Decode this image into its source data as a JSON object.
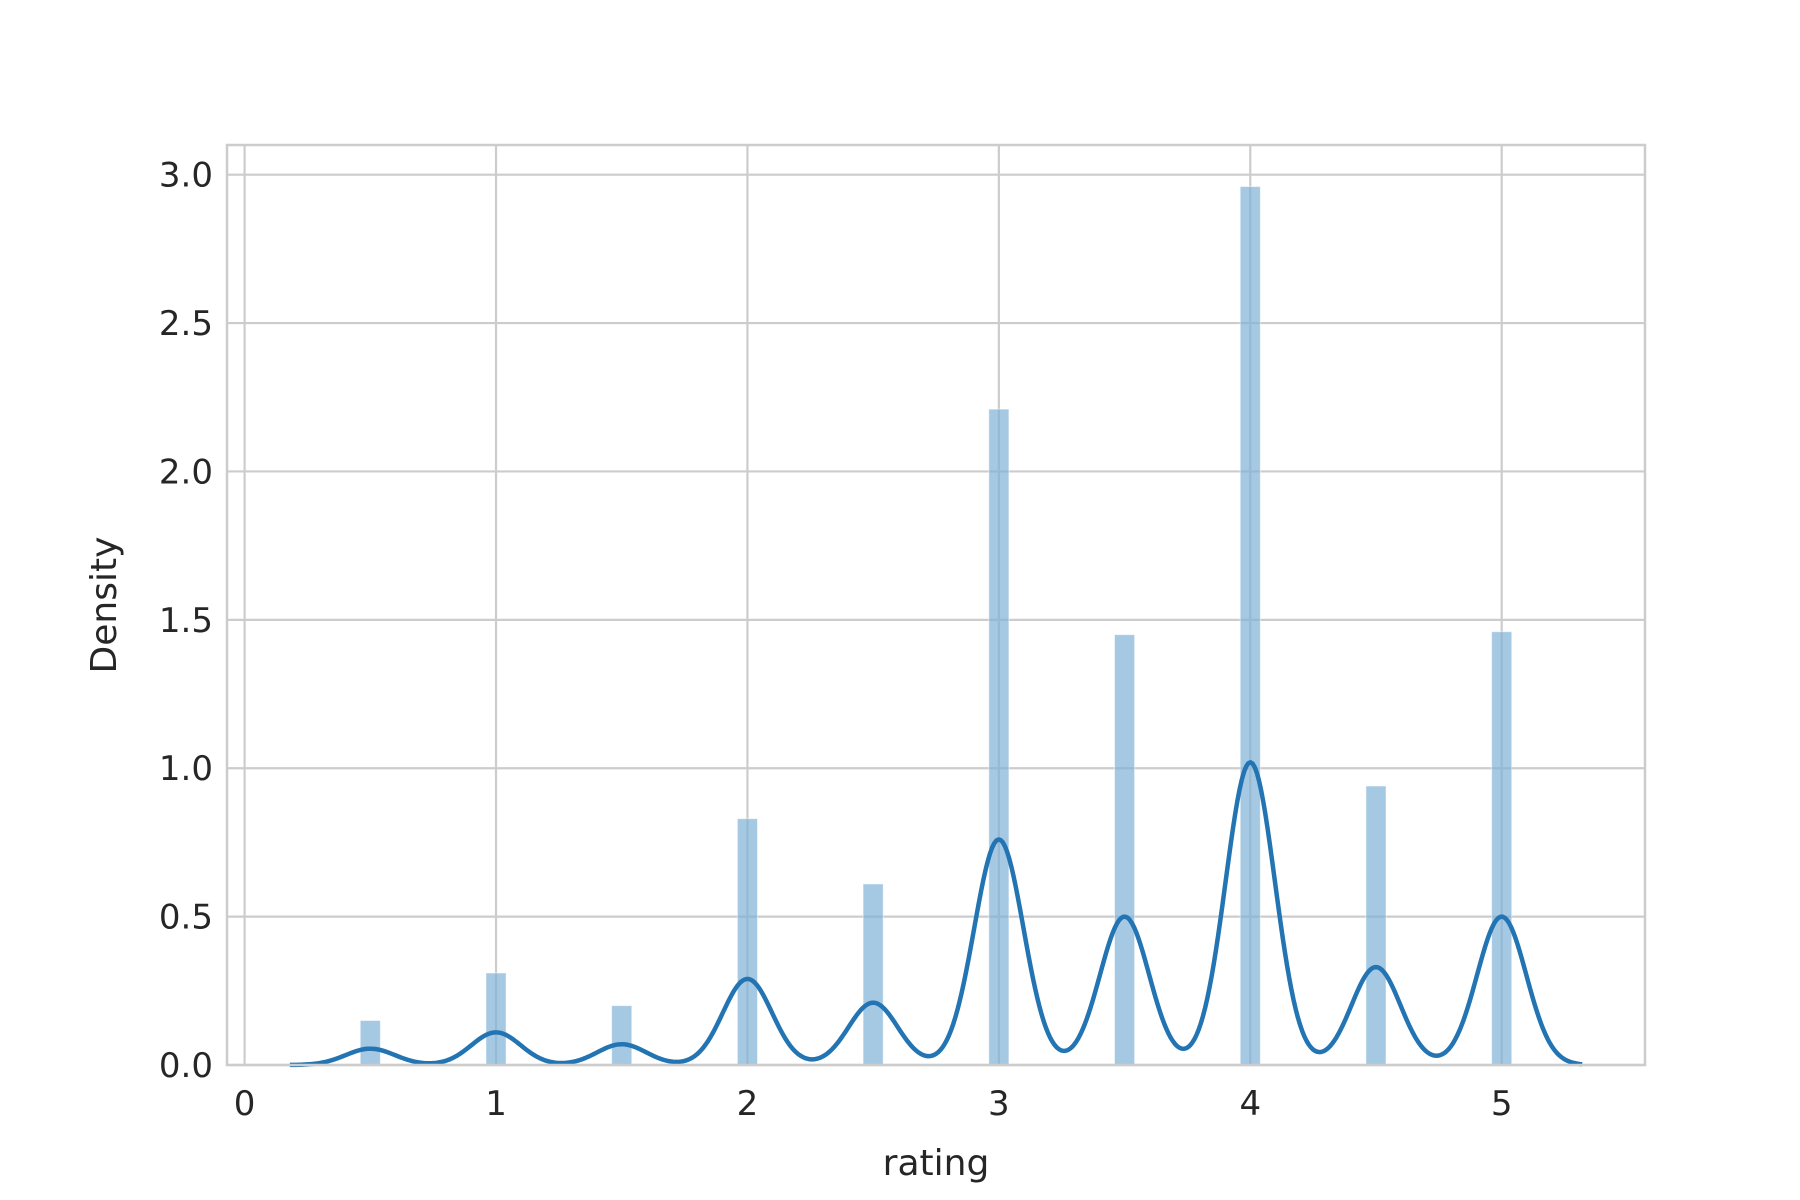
{
  "chart_data": {
    "type": "histogram-kde",
    "xlabel": "rating",
    "ylabel": "Density",
    "xlim": [
      -0.07,
      5.57
    ],
    "ylim": [
      0,
      3.1
    ],
    "xticks": [
      {
        "value": 0,
        "label": "0"
      },
      {
        "value": 1,
        "label": "1"
      },
      {
        "value": 2,
        "label": "2"
      },
      {
        "value": 3,
        "label": "3"
      },
      {
        "value": 4,
        "label": "4"
      },
      {
        "value": 5,
        "label": "5"
      }
    ],
    "yticks": [
      {
        "value": 0.0,
        "label": "0.0"
      },
      {
        "value": 0.5,
        "label": "0.5"
      },
      {
        "value": 1.0,
        "label": "1.0"
      },
      {
        "value": 1.5,
        "label": "1.5"
      },
      {
        "value": 2.0,
        "label": "2.0"
      },
      {
        "value": 2.5,
        "label": "2.5"
      },
      {
        "value": 3.0,
        "label": "3.0"
      }
    ],
    "grid": true,
    "colors": {
      "bar": "#7fb1d7",
      "kde": "#2374b2",
      "grid": "#cccccc",
      "spine": "#cccccc"
    },
    "bars": [
      {
        "x": 0.5,
        "height": 0.15
      },
      {
        "x": 1.0,
        "height": 0.31
      },
      {
        "x": 1.5,
        "height": 0.2
      },
      {
        "x": 2.0,
        "height": 0.83
      },
      {
        "x": 2.5,
        "height": 0.61
      },
      {
        "x": 3.0,
        "height": 2.21
      },
      {
        "x": 3.5,
        "height": 1.45
      },
      {
        "x": 4.0,
        "height": 2.96
      },
      {
        "x": 4.5,
        "height": 0.94
      },
      {
        "x": 5.0,
        "height": 1.46
      }
    ],
    "bar_width": 0.08,
    "kde_peaks": [
      {
        "x": 0.5,
        "y": 0.055
      },
      {
        "x": 1.0,
        "y": 0.11
      },
      {
        "x": 1.5,
        "y": 0.07
      },
      {
        "x": 2.0,
        "y": 0.29
      },
      {
        "x": 2.5,
        "y": 0.21
      },
      {
        "x": 3.0,
        "y": 0.76
      },
      {
        "x": 3.5,
        "y": 0.5
      },
      {
        "x": 4.0,
        "y": 1.02
      },
      {
        "x": 4.5,
        "y": 0.33
      },
      {
        "x": 5.0,
        "y": 0.5
      }
    ],
    "kde_bandwidth": 0.098,
    "kde_range": [
      0.18,
      5.32
    ]
  }
}
